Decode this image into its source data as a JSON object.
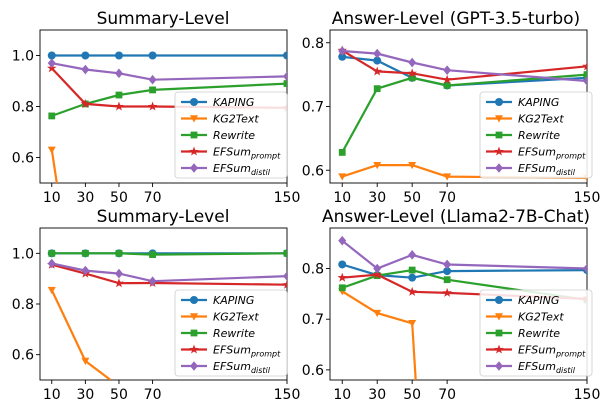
{
  "legend_labels": {
    "KAPING": "KAPING",
    "KG2Text": "KG2Text",
    "Rewrite": "Rewrite",
    "EFSum_prompt": [
      "EFSum",
      "prompt"
    ],
    "EFSum_distil": [
      "EFSum",
      "distil"
    ]
  },
  "colors": {
    "KAPING": "#1f77b4",
    "KG2Text": "#ff7f0e",
    "Rewrite": "#2ca02c",
    "EFSum_prompt": "#d62728",
    "EFSum_distil": "#9467bd"
  },
  "chart_data": [
    {
      "type": "line",
      "title": "Summary-Level",
      "x": [
        10,
        30,
        50,
        70,
        150
      ],
      "xticks": [
        10,
        30,
        50,
        70,
        150
      ],
      "xlim": [
        3,
        150
      ],
      "ylim": [
        0.5,
        1.1
      ],
      "yticks": [
        0.6,
        0.8,
        1.0
      ],
      "ytick_labels": [
        "0.6",
        "0.8",
        "1.0"
      ],
      "legend_loc": "lower-right",
      "series": [
        {
          "key": "KAPING",
          "name": "KAPING",
          "marker": "circle",
          "x": [
            10,
            30,
            50,
            70,
            150
          ],
          "values": [
            1.0,
            1.0,
            1.0,
            1.0,
            1.0
          ]
        },
        {
          "key": "KG2Text",
          "name": "KG2Text",
          "marker": "triangle-down",
          "x": [
            10,
            13
          ],
          "values": [
            0.63,
            0.5
          ]
        },
        {
          "key": "Rewrite",
          "name": "Rewrite",
          "marker": "square",
          "x": [
            10,
            30,
            50,
            70,
            150
          ],
          "values": [
            0.763,
            0.81,
            0.845,
            0.865,
            0.89
          ]
        },
        {
          "key": "EFSum_prompt",
          "name": "EFSum_prompt",
          "marker": "star",
          "x": [
            10,
            30,
            50,
            70,
            150
          ],
          "values": [
            0.95,
            0.81,
            0.8,
            0.8,
            0.795
          ]
        },
        {
          "key": "EFSum_distil",
          "name": "EFSum_distil",
          "marker": "diamond",
          "x": [
            10,
            30,
            50,
            70,
            150
          ],
          "values": [
            0.97,
            0.945,
            0.93,
            0.905,
            0.918
          ]
        }
      ]
    },
    {
      "type": "line",
      "title": "Answer-Level (GPT-3.5-turbo)",
      "x": [
        10,
        30,
        50,
        70,
        150
      ],
      "xticks": [
        10,
        30,
        50,
        70,
        150
      ],
      "xlim": [
        3,
        150
      ],
      "ylim": [
        0.58,
        0.82
      ],
      "yticks": [
        0.6,
        0.7,
        0.8
      ],
      "ytick_labels": [
        "0.6",
        "0.7",
        "0.8"
      ],
      "legend_loc": "lower-right",
      "series": [
        {
          "key": "KAPING",
          "name": "KAPING",
          "marker": "circle",
          "x": [
            10,
            30,
            50,
            70,
            150
          ],
          "values": [
            0.778,
            0.772,
            0.745,
            0.733,
            0.745
          ]
        },
        {
          "key": "KG2Text",
          "name": "KG2Text",
          "marker": "triangle-down",
          "x": [
            10,
            30,
            50,
            70,
            150
          ],
          "values": [
            0.59,
            0.608,
            0.608,
            0.59,
            0.588
          ]
        },
        {
          "key": "Rewrite",
          "name": "Rewrite",
          "marker": "square",
          "x": [
            10,
            30,
            50,
            70,
            150
          ],
          "values": [
            0.628,
            0.728,
            0.745,
            0.733,
            0.75
          ]
        },
        {
          "key": "EFSum_prompt",
          "name": "EFSum_prompt",
          "marker": "star",
          "x": [
            10,
            30,
            50,
            70,
            150
          ],
          "values": [
            0.788,
            0.755,
            0.752,
            0.742,
            0.763
          ]
        },
        {
          "key": "EFSum_distil",
          "name": "EFSum_distil",
          "marker": "diamond",
          "x": [
            10,
            30,
            50,
            70,
            150
          ],
          "values": [
            0.787,
            0.783,
            0.769,
            0.757,
            0.74
          ]
        }
      ]
    },
    {
      "type": "line",
      "title": "Summary-Level",
      "x": [
        10,
        30,
        50,
        70,
        150
      ],
      "xticks": [
        10,
        30,
        50,
        70,
        150
      ],
      "xlim": [
        3,
        150
      ],
      "ylim": [
        0.5,
        1.1
      ],
      "yticks": [
        0.6,
        0.8,
        1.0
      ],
      "ytick_labels": [
        "0.6",
        "0.8",
        "1.0"
      ],
      "legend_loc": "lower-right",
      "series": [
        {
          "key": "KAPING",
          "name": "KAPING",
          "marker": "circle",
          "x": [
            10,
            30,
            50,
            70,
            150
          ],
          "values": [
            1.0,
            1.0,
            1.0,
            1.0,
            1.0
          ]
        },
        {
          "key": "KG2Text",
          "name": "KG2Text",
          "marker": "triangle-down",
          "x": [
            10,
            30,
            45
          ],
          "values": [
            0.855,
            0.575,
            0.5
          ]
        },
        {
          "key": "Rewrite",
          "name": "Rewrite",
          "marker": "square",
          "x": [
            10,
            30,
            50,
            70,
            150
          ],
          "values": [
            1.0,
            1.0,
            1.0,
            0.995,
            1.0
          ]
        },
        {
          "key": "EFSum_prompt",
          "name": "EFSum_prompt",
          "marker": "star",
          "x": [
            10,
            30,
            50,
            70,
            150
          ],
          "values": [
            0.955,
            0.92,
            0.882,
            0.883,
            0.876
          ]
        },
        {
          "key": "EFSum_distil",
          "name": "EFSum_distil",
          "marker": "diamond",
          "x": [
            10,
            30,
            50,
            70,
            150
          ],
          "values": [
            0.96,
            0.932,
            0.92,
            0.89,
            0.91
          ]
        }
      ]
    },
    {
      "type": "line",
      "title": "Answer-Level (Llama2-7B-Chat)",
      "x": [
        10,
        30,
        50,
        70,
        150
      ],
      "xticks": [
        10,
        30,
        50,
        70,
        150
      ],
      "xlim": [
        3,
        150
      ],
      "ylim": [
        0.58,
        0.88
      ],
      "yticks": [
        0.6,
        0.7,
        0.8
      ],
      "ytick_labels": [
        "0.6",
        "0.7",
        "0.8"
      ],
      "legend_loc": "lower-right",
      "series": [
        {
          "key": "KAPING",
          "name": "KAPING",
          "marker": "circle",
          "x": [
            10,
            30,
            50,
            70,
            150
          ],
          "values": [
            0.808,
            0.787,
            0.782,
            0.795,
            0.797
          ]
        },
        {
          "key": "KG2Text",
          "name": "KG2Text",
          "marker": "triangle-down",
          "x": [
            10,
            30,
            50,
            52
          ],
          "values": [
            0.755,
            0.712,
            0.692,
            0.58
          ]
        },
        {
          "key": "Rewrite",
          "name": "Rewrite",
          "marker": "square",
          "x": [
            10,
            30,
            50,
            70,
            150
          ],
          "values": [
            0.762,
            0.786,
            0.797,
            0.778,
            0.738
          ]
        },
        {
          "key": "EFSum_prompt",
          "name": "EFSum_prompt",
          "marker": "star",
          "x": [
            10,
            30,
            50,
            70,
            150
          ],
          "values": [
            0.782,
            0.788,
            0.754,
            0.752,
            0.74
          ]
        },
        {
          "key": "EFSum_distil",
          "name": "EFSum_distil",
          "marker": "diamond",
          "x": [
            10,
            30,
            50,
            70,
            150
          ],
          "values": [
            0.855,
            0.8,
            0.827,
            0.808,
            0.8
          ]
        }
      ]
    }
  ]
}
